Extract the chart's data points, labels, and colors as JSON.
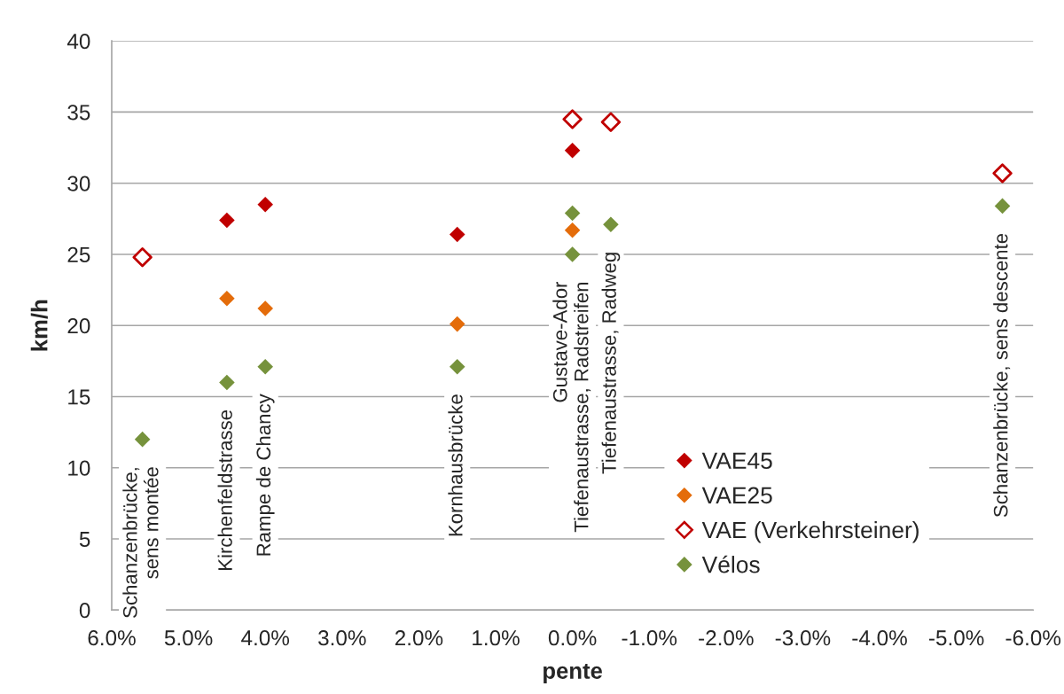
{
  "chart_data": {
    "type": "scatter",
    "xlabel": "pente",
    "ylabel": "km/h",
    "xlim": [
      6,
      -6
    ],
    "xticks": [
      {
        "value": 6,
        "label": "6.0%"
      },
      {
        "value": 5,
        "label": "5.0%"
      },
      {
        "value": 4,
        "label": "4.0%"
      },
      {
        "value": 3,
        "label": "3.0%"
      },
      {
        "value": 2,
        "label": "2.0%"
      },
      {
        "value": 1,
        "label": "1.0%"
      },
      {
        "value": 0,
        "label": "0.0%"
      },
      {
        "value": -1,
        "label": "-1.0%"
      },
      {
        "value": -2,
        "label": "-2.0%"
      },
      {
        "value": -3,
        "label": "-3.0%"
      },
      {
        "value": -4,
        "label": "-4.0%"
      },
      {
        "value": -5,
        "label": "-5.0%"
      },
      {
        "value": -6,
        "label": "-6.0%"
      }
    ],
    "ylim": [
      0,
      40
    ],
    "yticks": [
      0,
      5,
      10,
      15,
      20,
      25,
      30,
      35,
      40
    ],
    "grid": "y",
    "legend": "bottom right",
    "marker": "diamond",
    "series": [
      {
        "name": "VAE45",
        "color": "#c00000",
        "x": [
          4.5,
          4.0,
          1.5,
          0.0
        ],
        "values": [
          27.4,
          28.5,
          26.4,
          32.3
        ]
      },
      {
        "name": "VAE25",
        "color": "#e46c0a",
        "x": [
          4.5,
          4.0,
          1.5,
          0.0
        ],
        "values": [
          21.9,
          21.2,
          20.1,
          26.7
        ]
      },
      {
        "name": "VAE (Verkehrsteiner)",
        "color": "#c00000",
        "marker": "diamond-open",
        "x": [
          5.6,
          0.0,
          -0.5,
          -5.6
        ],
        "values": [
          24.8,
          34.5,
          34.3,
          30.7
        ]
      },
      {
        "name": "Vélos",
        "color": "#76923c",
        "x": [
          5.6,
          4.5,
          4.0,
          1.5,
          0.0,
          0.0,
          -0.5,
          -5.6
        ],
        "values": [
          12.0,
          16.0,
          17.1,
          17.1,
          27.9,
          25.0,
          27.1,
          28.4
        ]
      }
    ],
    "annotations": [
      {
        "text": "Schanzenbrücke,\nsens montée",
        "x": 5.6,
        "y": 12.0
      },
      {
        "text": "Kirchenfeldstrasse",
        "x": 4.5,
        "y": 16.0
      },
      {
        "text": "Rampe de Chancy",
        "x": 4.0,
        "y": 17.1
      },
      {
        "text": "Kornhausbrücke",
        "x": 1.5,
        "y": 17.1
      },
      {
        "text": "Gustave-Ador\nTiefenaustrasse, Radstreifen",
        "x": 0.0,
        "y": 25.0
      },
      {
        "text": "Tiefenaustrasse, Radweg",
        "x": -0.5,
        "y": 27.1
      },
      {
        "text": "Schanzenbrücke, sens descente",
        "x": -5.6,
        "y": 28.4
      }
    ]
  }
}
